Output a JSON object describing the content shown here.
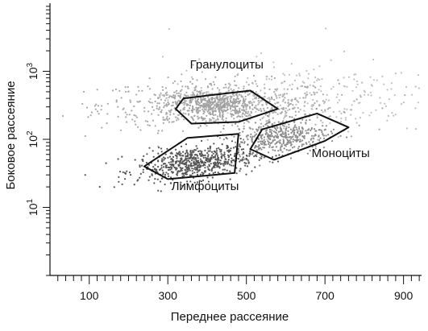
{
  "chart_data": {
    "type": "scatter",
    "xlabel": "Переднее рассеяние",
    "ylabel": "Боковое рассеяние",
    "x_ticks": [
      {
        "value": 100,
        "label": "100"
      },
      {
        "value": 300,
        "label": "300"
      },
      {
        "value": 500,
        "label": "500"
      },
      {
        "value": 700,
        "label": "700"
      },
      {
        "value": 900,
        "label": "900"
      }
    ],
    "x_minor_step": 20,
    "xlim": [
      0,
      950
    ],
    "y_scale": "log",
    "ylim": [
      1,
      10000
    ],
    "y_ticks": [
      {
        "value": 10,
        "base": "10",
        "exp": "1"
      },
      {
        "value": 100,
        "base": "10",
        "exp": "2"
      },
      {
        "value": 1000,
        "base": "10",
        "exp": "3"
      }
    ],
    "grid": false,
    "clusters": [
      {
        "color": "#a8a8a8",
        "count": 700,
        "center": [
          430,
          320
        ],
        "spread": [
          150,
          0.18
        ],
        "angle": 0
      },
      {
        "color": "#a0a0a0",
        "count": 320,
        "center": [
          420,
          320
        ],
        "spread": [
          55,
          0.09
        ],
        "angle": 0
      },
      {
        "color": "#555555",
        "count": 650,
        "center": [
          370,
          45
        ],
        "spread": [
          75,
          0.12
        ],
        "angle": 0.12
      },
      {
        "color": "#8c8c8c",
        "count": 420,
        "center": [
          590,
          110
        ],
        "spread": [
          60,
          0.13
        ],
        "angle": 0.1
      },
      {
        "color": "#c0c0c0",
        "count": 260,
        "center": [
          640,
          420
        ],
        "spread": [
          170,
          0.28
        ],
        "angle": 0
      }
    ],
    "gates": [
      {
        "name": "Гранулоциты",
        "polygon": [
          [
            340,
            400
          ],
          [
            510,
            520
          ],
          [
            580,
            280
          ],
          [
            480,
            180
          ],
          [
            360,
            170
          ],
          [
            320,
            280
          ]
        ],
        "label_at": [
          450,
          1100
        ]
      },
      {
        "name": "Лимфоциты",
        "polygon": [
          [
            240,
            40
          ],
          [
            350,
            105
          ],
          [
            480,
            120
          ],
          [
            470,
            32
          ],
          [
            300,
            26
          ]
        ],
        "label_at": [
          395,
          18
        ]
      },
      {
        "name": "Моноциты",
        "polygon": [
          [
            540,
            140
          ],
          [
            680,
            240
          ],
          [
            760,
            150
          ],
          [
            700,
            95
          ],
          [
            570,
            50
          ],
          [
            510,
            72
          ]
        ],
        "label_at": [
          740,
          55
        ]
      }
    ]
  }
}
